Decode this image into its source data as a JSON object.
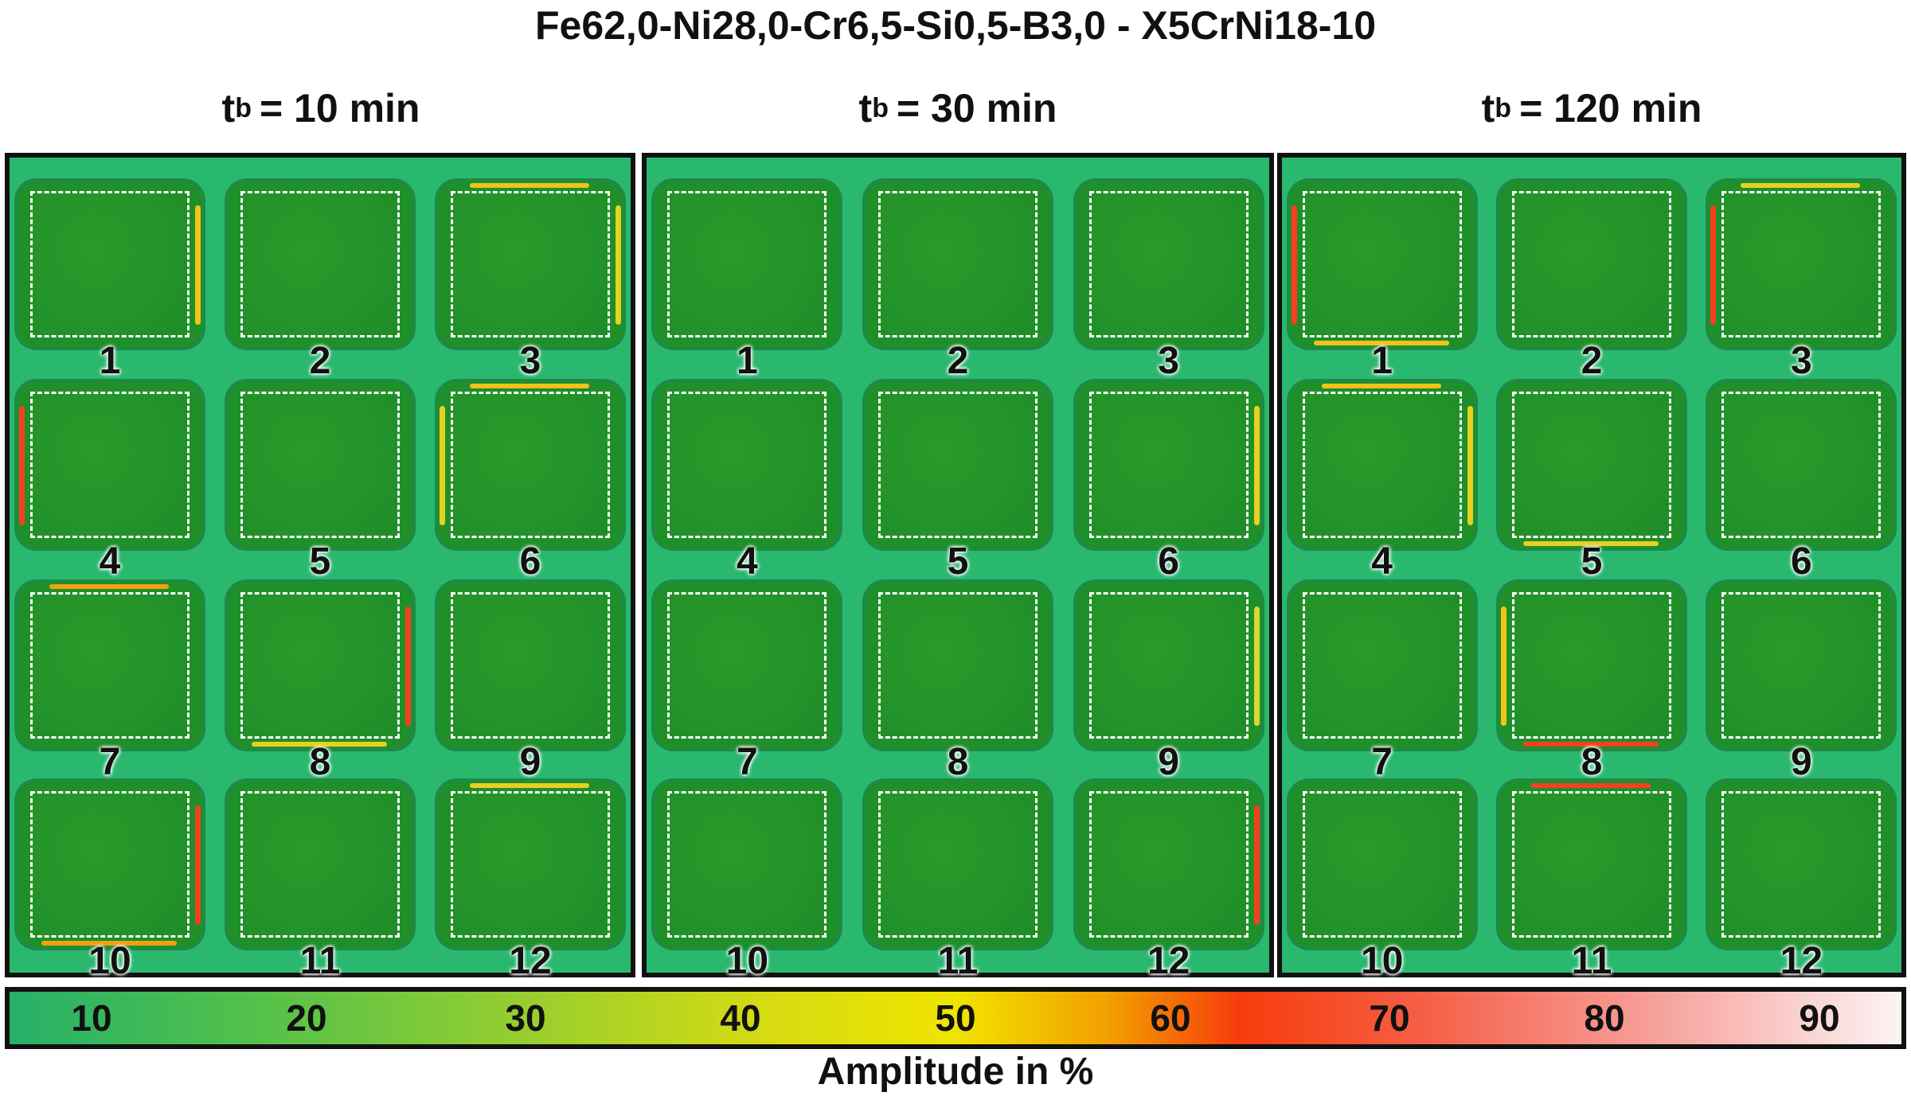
{
  "title": "Fe62,0-Ni28,0-Cr6,5-Si0,5-B3,0  - X5CrNi18-10",
  "panels": [
    {
      "var": "t",
      "sub": "b",
      "eq": "= 10 min"
    },
    {
      "var": "t",
      "sub": "b",
      "eq": "= 30 min"
    },
    {
      "var": "t",
      "sub": "b",
      "eq": "= 120 min"
    }
  ],
  "specimen_labels": [
    "1",
    "2",
    "3",
    "4",
    "5",
    "6",
    "7",
    "8",
    "9",
    "10",
    "11",
    "12"
  ],
  "colorbar": {
    "ticks": [
      "10",
      "20",
      "30",
      "40",
      "50",
      "60",
      "70",
      "80",
      "90"
    ],
    "label": "Amplitude in %",
    "colors": [
      "#27b06a",
      "#8ccc34",
      "#f0e400",
      "#f63c0c",
      "#fbf4f4"
    ]
  },
  "colors": {
    "background": "#2ab86f",
    "specimen": "#1f8f2a",
    "frame": "#111111",
    "dashed_roi": "#ffffff"
  }
}
